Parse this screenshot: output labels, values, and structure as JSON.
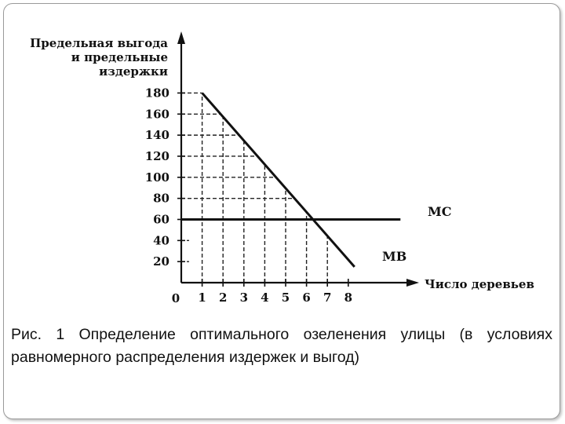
{
  "chart_data": {
    "type": "line",
    "ylabel_lines": [
      "Предельная выгода",
      "и предельные",
      "издержки"
    ],
    "xlabel": "Число деревьев",
    "origin_label": "0",
    "x_ticks": [
      1,
      2,
      3,
      4,
      5,
      6,
      7,
      8
    ],
    "y_ticks": [
      20,
      40,
      60,
      80,
      100,
      120,
      140,
      160,
      180
    ],
    "xlim": [
      0,
      8
    ],
    "ylim": [
      0,
      180
    ],
    "series": [
      {
        "name": "MC",
        "x": [
          0,
          10.5
        ],
        "y": [
          60,
          60
        ]
      },
      {
        "name": "MB",
        "x": [
          1,
          8.3
        ],
        "y": [
          180,
          15
        ]
      }
    ],
    "dashed_guides_x": [
      1,
      2,
      3,
      4,
      5,
      6,
      7
    ],
    "dashed_guides_y": [
      80,
      100,
      120,
      140,
      160,
      180
    ]
  },
  "caption": "Рис. 1 Определение оптимального озеленения улицы (в условиях равномерного распределения издержек и выгод)"
}
